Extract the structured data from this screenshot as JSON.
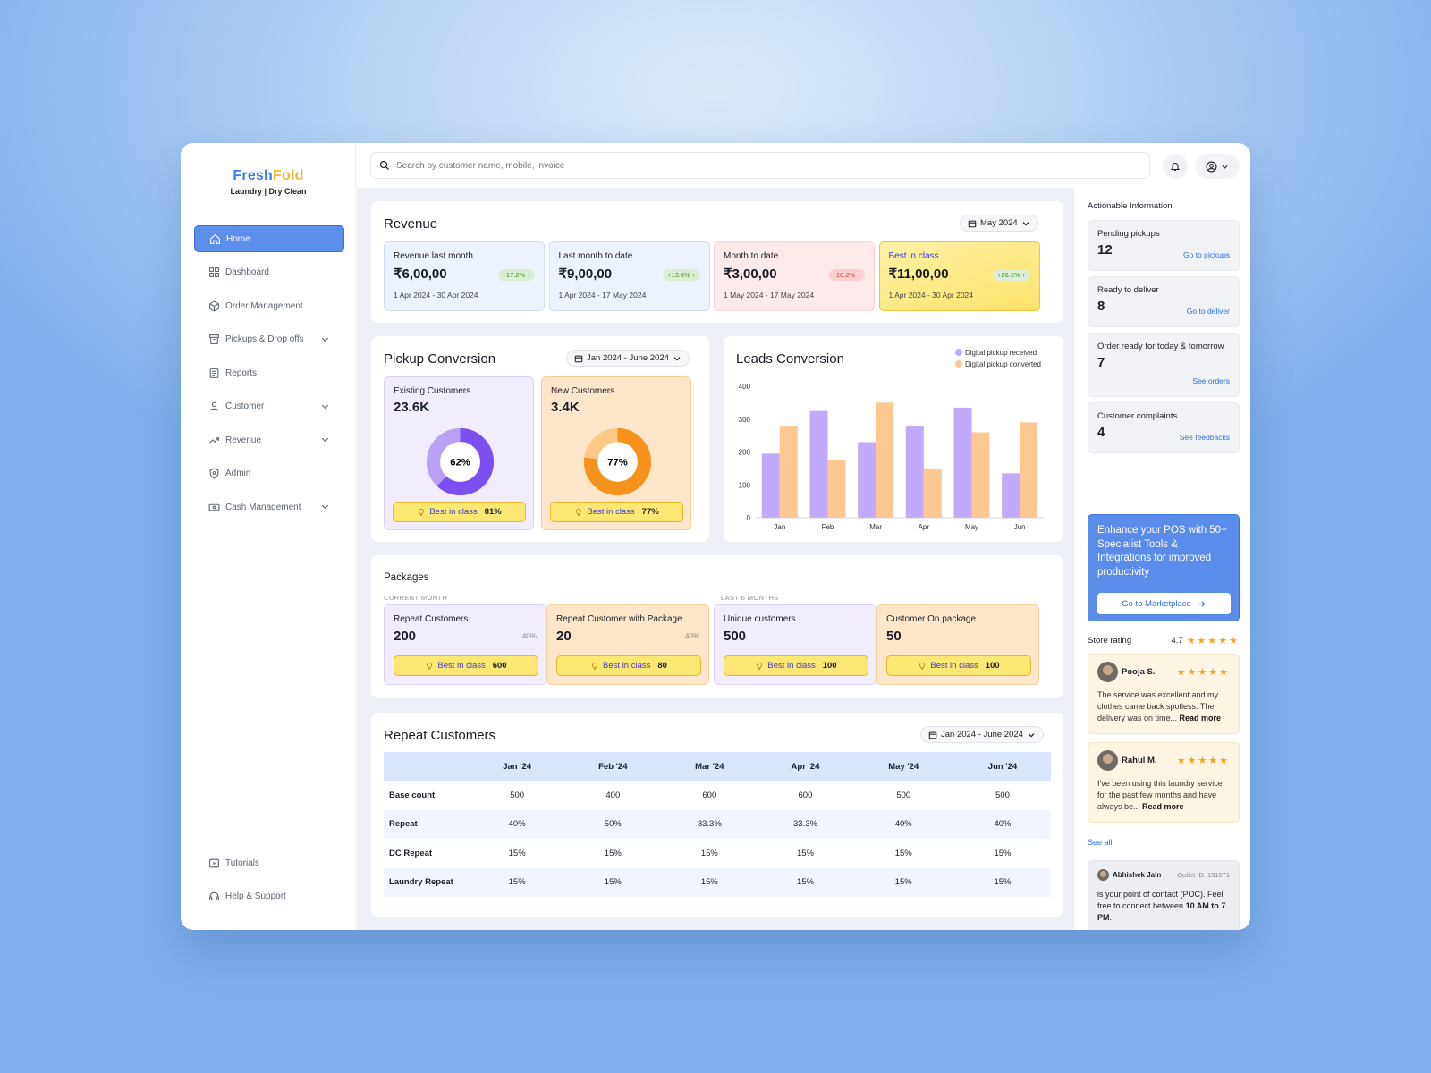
{
  "brand": {
    "name_a": "Fresh",
    "name_b": "Fold",
    "tagline": "Laundry | Dry Clean",
    "color_a": "#3b7ce6",
    "color_b": "#f5b62d"
  },
  "search": {
    "placeholder": "Search by customer name, mobile, invoice"
  },
  "nav": {
    "items": [
      {
        "label": "Home",
        "icon": "home-icon",
        "active": true
      },
      {
        "label": "Dashboard",
        "icon": "dashboard-icon"
      },
      {
        "label": "Order Management",
        "icon": "box-icon"
      },
      {
        "label": "Pickups & Drop offs",
        "icon": "archive-icon",
        "expandable": true
      },
      {
        "label": "Reports",
        "icon": "report-icon"
      },
      {
        "label": "Customer",
        "icon": "user-icon",
        "expandable": true
      },
      {
        "label": "Revenue",
        "icon": "trend-icon",
        "expandable": true
      },
      {
        "label": "Admin",
        "icon": "shield-icon"
      },
      {
        "label": "Cash Management",
        "icon": "cash-icon",
        "expandable": true
      }
    ],
    "bottom": [
      {
        "label": "Tutorials",
        "icon": "video-icon"
      },
      {
        "label": "Help & Support",
        "icon": "headset-icon"
      }
    ]
  },
  "revenue": {
    "title": "Revenue",
    "period": "May 2024",
    "cards": [
      {
        "label": "Revenue last month",
        "value": "₹6,00,00",
        "change": "+17.2% ↑",
        "dates": "1 Apr 2024 - 30 Apr 2024"
      },
      {
        "label": "Last month to date",
        "value": "₹9,00,00",
        "change": "+13.6% ↑",
        "dates": "1 Apr 2024 - 17 May 2024"
      },
      {
        "label": "Month to date",
        "value": "₹3,00,00",
        "change": "-10.2% ↓",
        "dates": "1 May 2024 - 17 May 2024"
      },
      {
        "label": "Best in class",
        "value": "₹11,00,00",
        "change": "+26.1% ↑",
        "dates": "1 Apr 2024 - 30 Apr 2024"
      }
    ]
  },
  "pickup": {
    "title": "Pickup Conversion",
    "period": "Jan 2024 - June 2024",
    "cards": [
      {
        "label": "Existing Customers",
        "value": "23.6K",
        "percent_label": "62%",
        "percent": 62,
        "color": "#7b4ff0",
        "light": "#b9a0f5",
        "best_label": "Best in class",
        "best_value": "81%"
      },
      {
        "label": "New Customers",
        "value": "3.4K",
        "percent_label": "77%",
        "percent": 77,
        "color": "#f5921c",
        "light": "#fbc985",
        "best_label": "Best in class",
        "best_value": "77%"
      }
    ]
  },
  "chart_data": {
    "type": "bar",
    "title": "Leads Conversion",
    "categories": [
      "Jan",
      "Feb",
      "Mar",
      "Apr",
      "May",
      "Jun"
    ],
    "series": [
      {
        "name": "Digital pickup received",
        "color": "#c1aafb",
        "values": [
          195,
          325,
          230,
          280,
          335,
          135
        ]
      },
      {
        "name": "Digital pickup converted",
        "color": "#fec891",
        "values": [
          280,
          175,
          350,
          150,
          260,
          290
        ]
      }
    ],
    "ylim": [
      0,
      400
    ],
    "yticks": [
      0,
      100,
      200,
      300,
      400
    ],
    "legend": "top-right",
    "grid": false
  },
  "packages": {
    "title": "Packages",
    "current_label": "CURRENT MONTH",
    "last_label": "LAST 6 MONTHS",
    "cards": [
      {
        "label": "Repeat Customers",
        "value": "200",
        "pct": "40%",
        "best_label": "Best in class",
        "best_value": "600"
      },
      {
        "label": "Repeat Customer with Package",
        "value": "20",
        "pct": "40%",
        "best_label": "Best in class",
        "best_value": "80"
      },
      {
        "label": "Unique customers",
        "value": "500",
        "pct": "",
        "best_label": "Best in class",
        "best_value": "100"
      },
      {
        "label": "Customer On package",
        "value": "50",
        "pct": "",
        "best_label": "Best in class",
        "best_value": "100"
      }
    ]
  },
  "repeat": {
    "title": "Repeat Customers",
    "period": "Jan 2024 - June 2024",
    "columns": [
      "",
      "Jan '24",
      "Feb '24",
      "Mar '24",
      "Apr '24",
      "May '24",
      "Jun '24"
    ],
    "rows": [
      [
        "Base count",
        "500",
        "400",
        "600",
        "600",
        "500",
        "500"
      ],
      [
        "Repeat",
        "40%",
        "50%",
        "33.3%",
        "33.3%",
        "40%",
        "40%"
      ],
      [
        "DC Repeat",
        "15%",
        "15%",
        "15%",
        "15%",
        "15%",
        "15%"
      ],
      [
        "Laundry Repeat",
        "15%",
        "15%",
        "15%",
        "15%",
        "15%",
        "15%"
      ]
    ]
  },
  "actionable": {
    "title": "Actionable Information",
    "items": [
      {
        "label": "Pending pickups",
        "value": "12",
        "link": "Go to pickups"
      },
      {
        "label": "Ready to deliver",
        "value": "8",
        "link": "Go to deliver"
      },
      {
        "label": "Order ready for today & tomorrow",
        "value": "7",
        "link": "See orders"
      },
      {
        "label": "Customer complaints",
        "value": "4",
        "link": "See feedbacks"
      }
    ]
  },
  "promo": {
    "text": "Enhance your POS with 50+ Specialist Tools & Integrations for improved productivity",
    "button": "Go to Marketplace"
  },
  "rating": {
    "label": "Store rating",
    "value": "4.7",
    "stars": "★★★★★"
  },
  "reviews": [
    {
      "name": "Pooja S.",
      "stars": "★★★★★",
      "text": "The service was excellent and my clothes came back spotless. The delivery was on time... ",
      "more": "Read more"
    },
    {
      "name": "Rahul M.",
      "stars": "★★★★★",
      "text": "I've been using this laundry service for the past few months and have always be... ",
      "more": "Read more"
    }
  ],
  "see_all": "See all",
  "poc": {
    "name": "Abhishek Jain",
    "outlet": "Outlet ID: 131071",
    "text": "is your point of contact (POC). Feel free to connect between ",
    "hours": "10 AM to 7 PM",
    "end": "."
  }
}
